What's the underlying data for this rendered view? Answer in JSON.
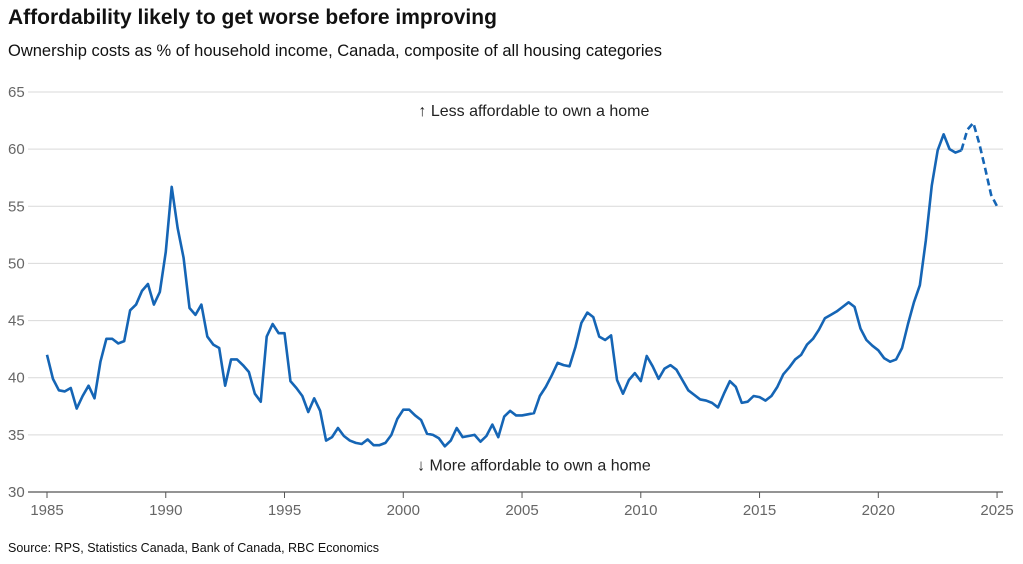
{
  "title": "Affordability likely to get worse before improving",
  "subtitle": "Ownership costs as % of household income, Canada, composite of all housing categories",
  "source": "Source: RPS, Statistics Canada, Bank of Canada, RBC Economics",
  "chart_data": {
    "type": "line",
    "xlim": [
      1985,
      2025.25
    ],
    "ylim": [
      30,
      65
    ],
    "yticks": [
      30,
      35,
      40,
      45,
      50,
      55,
      60,
      65
    ],
    "xticks": [
      1985,
      1990,
      1995,
      2000,
      2005,
      2010,
      2015,
      2020,
      2025
    ],
    "grid": true,
    "colors": {
      "line": "#1565b5",
      "grid": "#d9d9d9",
      "axis": "#555555"
    },
    "annotations": [
      {
        "text": "↑ Less affordable to own a home",
        "x": 2005.5,
        "y": 62.9
      },
      {
        "text": "↓ More affordable to own a home",
        "x": 2005.5,
        "y": 31.9
      }
    ],
    "series": [
      {
        "style": "solid",
        "x": [
          1985.0,
          1985.25,
          1985.5,
          1985.75,
          1986.0,
          1986.25,
          1986.5,
          1986.75,
          1987.0,
          1987.25,
          1987.5,
          1987.75,
          1988.0,
          1988.25,
          1988.5,
          1988.75,
          1989.0,
          1989.25,
          1989.5,
          1989.75,
          1990.0,
          1990.25,
          1990.5,
          1990.75,
          1991.0,
          1991.25,
          1991.5,
          1991.75,
          1992.0,
          1992.25,
          1992.5,
          1992.75,
          1993.0,
          1993.25,
          1993.5,
          1993.75,
          1994.0,
          1994.25,
          1994.5,
          1994.75,
          1995.0,
          1995.25,
          1995.5,
          1995.75,
          1996.0,
          1996.25,
          1996.5,
          1996.75,
          1997.0,
          1997.25,
          1997.5,
          1997.75,
          1998.0,
          1998.25,
          1998.5,
          1998.75,
          1999.0,
          1999.25,
          1999.5,
          1999.75,
          2000.0,
          2000.25,
          2000.5,
          2000.75,
          2001.0,
          2001.25,
          2001.5,
          2001.75,
          2002.0,
          2002.25,
          2002.5,
          2002.75,
          2003.0,
          2003.25,
          2003.5,
          2003.75,
          2004.0,
          2004.25,
          2004.5,
          2004.75,
          2005.0,
          2005.25,
          2005.5,
          2005.75,
          2006.0,
          2006.25,
          2006.5,
          2006.75,
          2007.0,
          2007.25,
          2007.5,
          2007.75,
          2008.0,
          2008.25,
          2008.5,
          2008.75,
          2009.0,
          2009.25,
          2009.5,
          2009.75,
          2010.0,
          2010.25,
          2010.5,
          2010.75,
          2011.0,
          2011.25,
          2011.5,
          2011.75,
          2012.0,
          2012.25,
          2012.5,
          2012.75,
          2013.0,
          2013.25,
          2013.5,
          2013.75,
          2014.0,
          2014.25,
          2014.5,
          2014.75,
          2015.0,
          2015.25,
          2015.5,
          2015.75,
          2016.0,
          2016.25,
          2016.5,
          2016.75,
          2017.0,
          2017.25,
          2017.5,
          2017.75,
          2018.0,
          2018.25,
          2018.5,
          2018.75,
          2019.0,
          2019.25,
          2019.5,
          2019.75,
          2020.0,
          2020.25,
          2020.5,
          2020.75,
          2021.0,
          2021.25,
          2021.5,
          2021.75,
          2022.0,
          2022.25,
          2022.5,
          2022.75,
          2023.0,
          2023.25,
          2023.5
        ],
        "y": [
          42.0,
          39.9,
          38.9,
          38.8,
          39.1,
          37.3,
          38.4,
          39.3,
          38.2,
          41.4,
          43.4,
          43.4,
          43.0,
          43.2,
          45.9,
          46.4,
          47.6,
          48.2,
          46.4,
          47.5,
          51.0,
          56.7,
          53.1,
          50.5,
          46.1,
          45.5,
          46.4,
          43.6,
          42.9,
          42.6,
          39.3,
          41.6,
          41.6,
          41.1,
          40.5,
          38.6,
          37.9,
          43.6,
          44.7,
          43.9,
          43.9,
          39.7,
          39.1,
          38.4,
          37.0,
          38.2,
          37.1,
          34.5,
          34.8,
          35.6,
          34.9,
          34.5,
          34.3,
          34.2,
          34.6,
          34.1,
          34.1,
          34.3,
          35.0,
          36.4,
          37.2,
          37.2,
          36.7,
          36.3,
          35.1,
          35.0,
          34.7,
          34.0,
          34.5,
          35.6,
          34.8,
          34.9,
          35.0,
          34.4,
          34.9,
          35.9,
          34.8,
          36.6,
          37.1,
          36.7,
          36.7,
          36.8,
          36.9,
          38.4,
          39.2,
          40.2,
          41.3,
          41.1,
          41.0,
          42.7,
          44.8,
          45.7,
          45.3,
          43.6,
          43.3,
          43.7,
          39.8,
          38.6,
          39.8,
          40.4,
          39.7,
          41.9,
          41.0,
          39.9,
          40.8,
          41.1,
          40.7,
          39.8,
          38.9,
          38.5,
          38.1,
          38.0,
          37.8,
          37.4,
          38.6,
          39.7,
          39.2,
          37.8,
          37.9,
          38.4,
          38.3,
          38.0,
          38.4,
          39.2,
          40.3,
          40.9,
          41.6,
          42.0,
          42.9,
          43.4,
          44.2,
          45.2,
          45.5,
          45.8,
          46.2,
          46.6,
          46.2,
          44.3,
          43.3,
          42.8,
          42.4,
          41.7,
          41.4,
          41.6,
          42.6,
          44.7,
          46.6,
          48.1,
          52.0,
          56.8,
          59.9,
          61.3,
          60.0,
          59.7,
          59.9
        ]
      },
      {
        "style": "dashed",
        "x": [
          2023.5,
          2023.75,
          2024.0,
          2024.25,
          2024.5,
          2024.75,
          2025.0
        ],
        "y": [
          59.9,
          61.7,
          62.3,
          60.5,
          58.3,
          56.0,
          55.0
        ]
      }
    ]
  }
}
